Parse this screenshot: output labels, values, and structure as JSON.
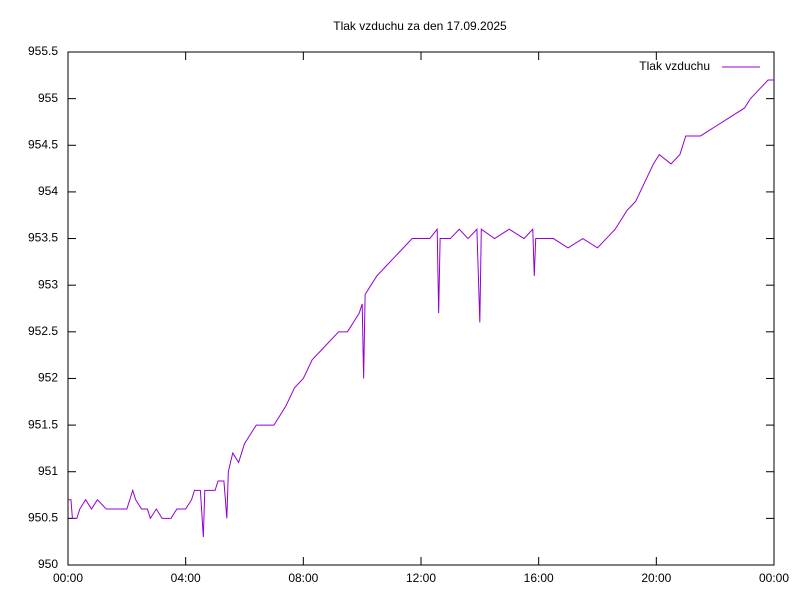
{
  "chart_data": {
    "type": "line",
    "title": "Tlak vzduchu za den 17.09.2025",
    "x": [
      0,
      0.1,
      0.15,
      0.3,
      0.4,
      0.6,
      0.8,
      1.0,
      1.3,
      1.5,
      2.0,
      2.2,
      2.3,
      2.5,
      2.7,
      2.8,
      3.0,
      3.2,
      3.5,
      3.7,
      4.0,
      4.2,
      4.3,
      4.5,
      4.6,
      4.65,
      5.0,
      5.1,
      5.3,
      5.4,
      5.45,
      5.6,
      5.8,
      6.0,
      6.2,
      6.4,
      6.7,
      7.0,
      7.2,
      7.4,
      7.7,
      8.0,
      8.3,
      8.6,
      8.9,
      9.2,
      9.5,
      9.7,
      9.9,
      10.0,
      10.05,
      10.1,
      10.3,
      10.5,
      10.8,
      11.1,
      11.4,
      11.7,
      12.0,
      12.3,
      12.55,
      12.6,
      12.65,
      13.0,
      13.3,
      13.6,
      13.9,
      14.0,
      14.05,
      14.5,
      15.0,
      15.5,
      15.8,
      15.85,
      15.9,
      16.5,
      17.0,
      17.5,
      18.0,
      18.3,
      18.6,
      19.0,
      19.3,
      19.6,
      19.9,
      20.1,
      20.5,
      20.8,
      21.0,
      21.5,
      22.0,
      22.5,
      23.0,
      23.2,
      23.5,
      23.8,
      24.0
    ],
    "series": [
      {
        "name": "Tlak vzduchu",
        "color": "#9400d3",
        "values": [
          950.7,
          950.7,
          950.5,
          950.5,
          950.6,
          950.7,
          950.6,
          950.7,
          950.6,
          950.6,
          950.6,
          950.8,
          950.7,
          950.6,
          950.6,
          950.5,
          950.6,
          950.5,
          950.5,
          950.6,
          950.6,
          950.7,
          950.8,
          950.8,
          950.3,
          950.8,
          950.8,
          950.9,
          950.9,
          950.5,
          951.0,
          951.2,
          951.1,
          951.3,
          951.4,
          951.5,
          951.5,
          951.5,
          951.6,
          951.7,
          951.9,
          952.0,
          952.2,
          952.3,
          952.4,
          952.5,
          952.5,
          952.6,
          952.7,
          952.8,
          952.0,
          952.9,
          953.0,
          953.1,
          953.2,
          953.3,
          953.4,
          953.5,
          953.5,
          953.5,
          953.6,
          952.7,
          953.5,
          953.5,
          953.6,
          953.5,
          953.6,
          952.6,
          953.6,
          953.5,
          953.6,
          953.5,
          953.6,
          953.1,
          953.5,
          953.5,
          953.4,
          953.5,
          953.4,
          953.5,
          953.6,
          953.8,
          953.9,
          954.1,
          954.3,
          954.4,
          954.3,
          954.4,
          954.6,
          954.6,
          954.7,
          954.8,
          954.9,
          955.0,
          955.1,
          955.2,
          955.2
        ]
      }
    ],
    "xlim": [
      0,
      24
    ],
    "xticks": [
      {
        "value": 0,
        "label": "00:00"
      },
      {
        "value": 4,
        "label": "04:00"
      },
      {
        "value": 8,
        "label": "08:00"
      },
      {
        "value": 12,
        "label": "12:00"
      },
      {
        "value": 16,
        "label": "16:00"
      },
      {
        "value": 20,
        "label": "20:00"
      },
      {
        "value": 24,
        "label": "00:00"
      }
    ],
    "ylim": [
      950,
      955.5
    ],
    "yticks": [
      950,
      950.5,
      951,
      951.5,
      952,
      952.5,
      953,
      953.5,
      954,
      954.5,
      955,
      955.5
    ],
    "legend": "top-right"
  }
}
